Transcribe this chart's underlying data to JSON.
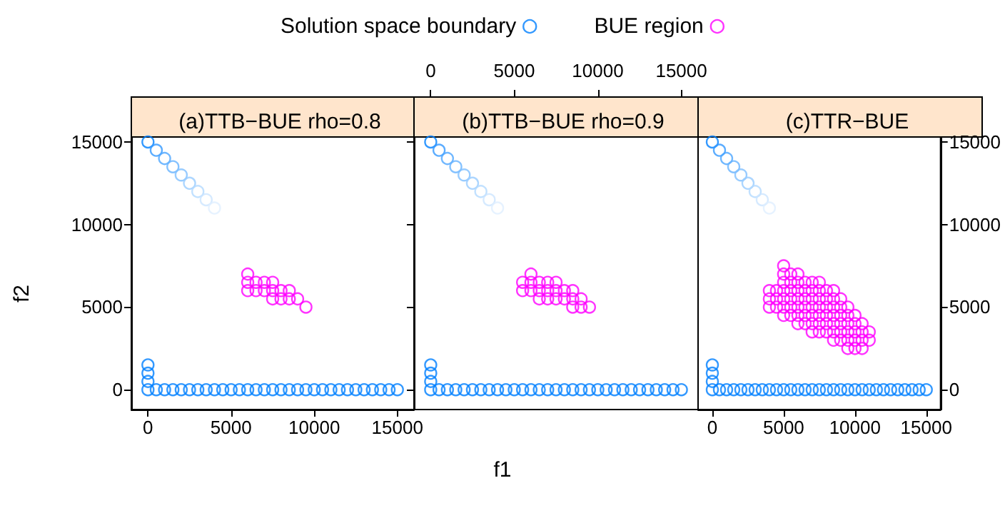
{
  "chart_data": [
    {
      "type": "scatter",
      "title": "(a)TTB−BUE rho=0.8",
      "ylabel": "f2",
      "legend": "top",
      "marker": "circle",
      "grid": false,
      "xlim": [
        -1000,
        16000
      ],
      "ylim": [
        -1200,
        15300
      ],
      "xticks": [
        0,
        5000,
        10000,
        15000
      ],
      "yticks": [
        0,
        5000,
        10000,
        15000
      ],
      "series": [
        {
          "name": "Solution space boundary",
          "color": "#0080ff",
          "colors": [
            "#0080ff",
            "#3399ff",
            "#4da6ff",
            "#66b3ff",
            "#80bfff",
            "#99ccff",
            "#b3d9ff",
            "#cce5ff",
            "#e0efff",
            "#0080ff",
            "#0080ff",
            "#0080ff",
            "#0080ff",
            "#0080ff",
            "#0080ff",
            "#0080ff",
            "#0080ff",
            "#0080ff",
            "#0080ff",
            "#0080ff",
            "#0080ff",
            "#0080ff",
            "#0080ff",
            "#0080ff",
            "#0080ff",
            "#0080ff",
            "#0080ff",
            "#0080ff",
            "#0080ff",
            "#0080ff",
            "#0080ff",
            "#0080ff",
            "#0080ff",
            "#0080ff",
            "#0080ff",
            "#0080ff",
            "#0080ff",
            "#0080ff",
            "#0080ff",
            "#0080ff",
            "#0080ff",
            "#0080ff",
            "#0080ff"
          ],
          "x": [
            0,
            500,
            1000,
            1500,
            2000,
            2500,
            3000,
            3500,
            4000,
            0,
            0,
            0,
            0,
            500,
            1000,
            1500,
            2000,
            2500,
            3000,
            3500,
            4000,
            4500,
            5000,
            5500,
            6000,
            6500,
            7000,
            7500,
            8000,
            8500,
            9000,
            9500,
            10000,
            10500,
            11000,
            11500,
            12000,
            12500,
            13000,
            13500,
            14000,
            14500,
            15000
          ],
          "values": [
            15000,
            14500,
            14000,
            13500,
            13000,
            12500,
            12000,
            11500,
            11000,
            1500,
            1000,
            500,
            0,
            0,
            0,
            0,
            0,
            0,
            0,
            0,
            0,
            0,
            0,
            0,
            0,
            0,
            0,
            0,
            0,
            0,
            0,
            0,
            0,
            0,
            0,
            0,
            0,
            0,
            0,
            0,
            0,
            0,
            0
          ]
        },
        {
          "name": "BUE region",
          "color": "#ff00ff",
          "x": [
            6000,
            6000,
            6500,
            7000,
            7500,
            6000,
            6500,
            7000,
            7500,
            8000,
            8500,
            7500,
            8000,
            8500,
            9000,
            9500
          ],
          "values": [
            7000,
            6500,
            6500,
            6500,
            6500,
            6000,
            6000,
            6000,
            6000,
            6000,
            6000,
            5500,
            5500,
            5500,
            5500,
            5000
          ]
        }
      ]
    },
    {
      "type": "scatter",
      "title": "(b)TTB−BUE rho=0.9",
      "xlabel": "f1",
      "marker": "circle",
      "grid": false,
      "tick_labels": "x",
      "xlim": [
        -1000,
        16000
      ],
      "ylim": [
        -1200,
        15300
      ],
      "xticks": [
        0,
        5000,
        10000,
        15000
      ],
      "yticks": [
        0,
        5000,
        10000,
        15000
      ],
      "series": [
        {
          "color": "#0080ff",
          "colors": [
            "#0080ff",
            "#3399ff",
            "#4da6ff",
            "#66b3ff",
            "#80bfff",
            "#99ccff",
            "#b3d9ff",
            "#cce5ff",
            "#e0efff",
            "#0080ff",
            "#0080ff",
            "#0080ff",
            "#0080ff",
            "#0080ff",
            "#0080ff",
            "#0080ff",
            "#0080ff",
            "#0080ff",
            "#0080ff",
            "#0080ff",
            "#0080ff",
            "#0080ff",
            "#0080ff",
            "#0080ff",
            "#0080ff",
            "#0080ff",
            "#0080ff",
            "#0080ff",
            "#0080ff",
            "#0080ff",
            "#0080ff",
            "#0080ff",
            "#0080ff",
            "#0080ff",
            "#0080ff",
            "#0080ff",
            "#0080ff",
            "#0080ff",
            "#0080ff",
            "#0080ff",
            "#0080ff",
            "#0080ff",
            "#0080ff"
          ],
          "x": [
            0,
            500,
            1000,
            1500,
            2000,
            2500,
            3000,
            3500,
            4000,
            0,
            0,
            0,
            0,
            500,
            1000,
            1500,
            2000,
            2500,
            3000,
            3500,
            4000,
            4500,
            5000,
            5500,
            6000,
            6500,
            7000,
            7500,
            8000,
            8500,
            9000,
            9500,
            10000,
            10500,
            11000,
            11500,
            12000,
            12500,
            13000,
            13500,
            14000,
            14500,
            15000
          ],
          "values": [
            15000,
            14500,
            14000,
            13500,
            13000,
            12500,
            12000,
            11500,
            11000,
            1500,
            1000,
            500,
            0,
            0,
            0,
            0,
            0,
            0,
            0,
            0,
            0,
            0,
            0,
            0,
            0,
            0,
            0,
            0,
            0,
            0,
            0,
            0,
            0,
            0,
            0,
            0,
            0,
            0,
            0,
            0,
            0,
            0,
            0
          ]
        },
        {
          "color": "#ff00ff",
          "x": [
            6000,
            5500,
            6000,
            6500,
            7000,
            7500,
            5500,
            6000,
            6500,
            7000,
            7500,
            8000,
            8500,
            6500,
            7000,
            7500,
            8000,
            8500,
            9000,
            8500,
            9000,
            9500
          ],
          "values": [
            7000,
            6500,
            6500,
            6500,
            6500,
            6500,
            6000,
            6000,
            6000,
            6000,
            6000,
            6000,
            6000,
            5500,
            5500,
            5500,
            5500,
            5500,
            5500,
            5000,
            5000,
            5000
          ]
        }
      ]
    },
    {
      "type": "scatter",
      "title": "(c)TTR−BUE",
      "marker": "circle",
      "grid": false,
      "xlim": [
        -1000,
        16000
      ],
      "ylim": [
        -1200,
        15300
      ],
      "xticks": [
        0,
        5000,
        10000,
        15000
      ],
      "yticks": [
        0,
        5000,
        10000,
        15000
      ],
      "series": [
        {
          "color": "#0080ff",
          "colors": [
            "#0080ff",
            "#3399ff",
            "#4da6ff",
            "#66b3ff",
            "#80bfff",
            "#99ccff",
            "#b3d9ff",
            "#cce5ff",
            "#e0efff",
            "#0080ff",
            "#0080ff",
            "#0080ff",
            "#0080ff",
            "#0080ff",
            "#0080ff",
            "#0080ff",
            "#0080ff",
            "#0080ff",
            "#0080ff",
            "#0080ff",
            "#0080ff",
            "#0080ff",
            "#0080ff",
            "#0080ff",
            "#0080ff",
            "#0080ff",
            "#0080ff",
            "#0080ff",
            "#0080ff",
            "#0080ff",
            "#0080ff",
            "#0080ff",
            "#0080ff",
            "#0080ff",
            "#0080ff",
            "#0080ff",
            "#0080ff",
            "#0080ff",
            "#0080ff",
            "#0080ff",
            "#0080ff",
            "#0080ff",
            "#0080ff"
          ],
          "x": [
            0,
            500,
            1000,
            1500,
            2000,
            2500,
            3000,
            3500,
            4000,
            0,
            0,
            0,
            0,
            500,
            1000,
            1500,
            2000,
            2500,
            3000,
            3500,
            4000,
            4500,
            5000,
            5500,
            6000,
            6500,
            7000,
            7500,
            8000,
            8500,
            9000,
            9500,
            10000,
            10500,
            11000,
            11500,
            12000,
            12500,
            13000,
            13500,
            14000,
            14500,
            15000
          ],
          "values": [
            15000,
            14500,
            14000,
            13500,
            13000,
            12500,
            12000,
            11500,
            11000,
            1500,
            1000,
            500,
            0,
            0,
            0,
            0,
            0,
            0,
            0,
            0,
            0,
            0,
            0,
            0,
            0,
            0,
            0,
            0,
            0,
            0,
            0,
            0,
            0,
            0,
            0,
            0,
            0,
            0,
            0,
            0,
            0,
            0,
            0
          ]
        },
        {
          "color": "#ff00ff",
          "x": [
            5000,
            5000,
            5500,
            6000,
            5000,
            5500,
            6000,
            6500,
            7000,
            7500,
            4000,
            4500,
            5000,
            5500,
            6000,
            6500,
            7000,
            7500,
            8000,
            8500,
            4000,
            4500,
            5000,
            5500,
            6000,
            6500,
            7000,
            7500,
            8000,
            8500,
            9000,
            4000,
            4500,
            5000,
            5500,
            6000,
            6500,
            7000,
            7500,
            8000,
            8500,
            9000,
            9500,
            5000,
            5500,
            6000,
            6500,
            7000,
            7500,
            8000,
            8500,
            9000,
            9500,
            10000,
            6000,
            6500,
            7000,
            7500,
            8000,
            8500,
            9000,
            9500,
            10000,
            10500,
            7000,
            7500,
            8000,
            8500,
            9000,
            9500,
            10000,
            10500,
            11000,
            8500,
            9000,
            9500,
            10000,
            10500,
            11000,
            9500,
            10000,
            10500
          ],
          "values": [
            7500,
            7000,
            7000,
            7000,
            6500,
            6500,
            6500,
            6500,
            6500,
            6500,
            6000,
            6000,
            6000,
            6000,
            6000,
            6000,
            6000,
            6000,
            6000,
            6000,
            5500,
            5500,
            5500,
            5500,
            5500,
            5500,
            5500,
            5500,
            5500,
            5500,
            5500,
            5000,
            5000,
            5000,
            5000,
            5000,
            5000,
            5000,
            5000,
            5000,
            5000,
            5000,
            5000,
            4500,
            4500,
            4500,
            4500,
            4500,
            4500,
            4500,
            4500,
            4500,
            4500,
            4500,
            4000,
            4000,
            4000,
            4000,
            4000,
            4000,
            4000,
            4000,
            4000,
            4000,
            3500,
            3500,
            3500,
            3500,
            3500,
            3500,
            3500,
            3500,
            3500,
            3000,
            3000,
            3000,
            3000,
            3000,
            3000,
            2500,
            2500,
            2500
          ]
        }
      ]
    }
  ]
}
